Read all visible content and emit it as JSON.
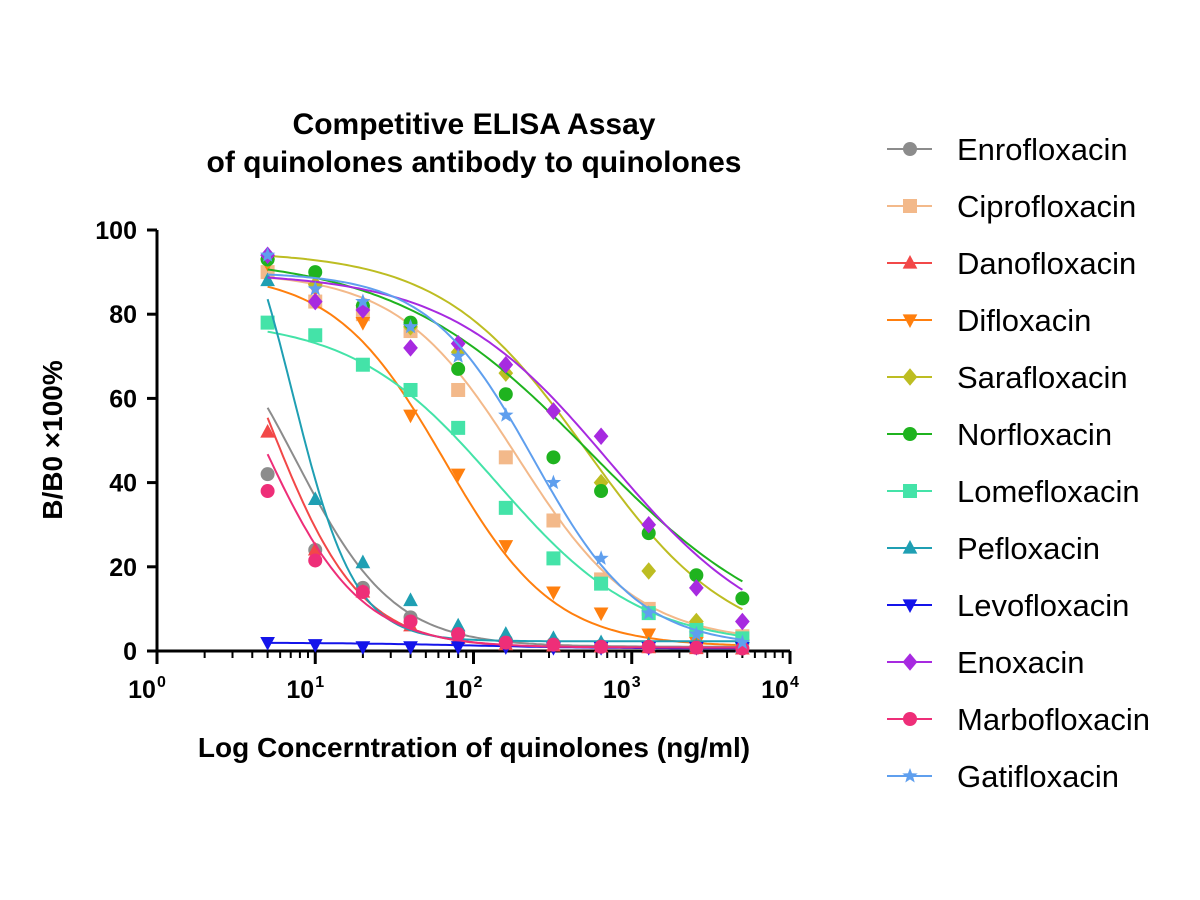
{
  "chart_data": {
    "type": "scatter",
    "title": [
      "Competitive ELISA Assay",
      "of quinolones antibody to quinolones"
    ],
    "xlabel": "Log Concerntration of quinolones (ng/ml)",
    "ylabel": "B/B0 ×100%",
    "xscale": "log",
    "xlim": [
      1,
      10000
    ],
    "ylim": [
      0,
      100
    ],
    "x_ticks": [
      {
        "value": 1,
        "base": "10",
        "exp": "0"
      },
      {
        "value": 10,
        "base": "10",
        "exp": "1"
      },
      {
        "value": 100,
        "base": "10",
        "exp": "2"
      },
      {
        "value": 1000,
        "base": "10",
        "exp": "3"
      },
      {
        "value": 10000,
        "base": "10",
        "exp": "4"
      }
    ],
    "y_ticks": [
      "0",
      "20",
      "40",
      "60",
      "80",
      "100"
    ],
    "grid": false,
    "legend_position": "right",
    "x": [
      5,
      10,
      20,
      40,
      80,
      160,
      320,
      640,
      1280,
      2560,
      5000
    ],
    "series": [
      {
        "name": "Enrofloxacin",
        "color": "#8c8c8c",
        "marker": "circle",
        "values": [
          42,
          24,
          15,
          8,
          4,
          2.5,
          1.8,
          1.2,
          1,
          0.8,
          0.6
        ],
        "fit": {
          "top": 90,
          "bottom": 1,
          "ic50": 7.5,
          "hill": 1.4
        }
      },
      {
        "name": "Ciprofloxacin",
        "color": "#f3b98a",
        "marker": "square",
        "values": [
          90,
          83,
          80,
          76,
          62,
          46,
          31,
          17,
          10,
          5,
          3.5
        ],
        "fit": {
          "top": 90,
          "bottom": 2,
          "ic50": 190,
          "hill": 1.15
        }
      },
      {
        "name": "Danofloxacin",
        "color": "#f24848",
        "marker": "triangle-up",
        "values": [
          52,
          24,
          14,
          6,
          3,
          1.5,
          1.2,
          1,
          0.8,
          0.6,
          0.5
        ],
        "fit": {
          "top": 110,
          "bottom": 0.8,
          "ic50": 5,
          "hill": 1.5
        }
      },
      {
        "name": "Difloxacin",
        "color": "#ff7f0e",
        "marker": "triangle-down",
        "values": [
          92,
          86,
          78,
          56,
          42,
          25,
          14,
          9,
          4,
          2,
          1.5
        ],
        "fit": {
          "top": 90,
          "bottom": 1,
          "ic50": 65,
          "hill": 1.25
        }
      },
      {
        "name": "Sarafloxacin",
        "color": "#bdbd22",
        "marker": "diamond",
        "values": [
          93,
          87,
          82,
          77,
          71,
          66,
          57,
          40,
          19,
          7,
          2
        ],
        "fit": {
          "top": 95,
          "bottom": 0,
          "ic50": 520,
          "hill": 0.95
        }
      },
      {
        "name": "Norfloxacin",
        "color": "#1fb31f",
        "marker": "circle",
        "values": [
          93,
          90,
          82,
          78,
          67,
          61,
          46,
          38,
          28,
          18,
          12.5
        ],
        "fit": {
          "top": 94,
          "bottom": 0,
          "ic50": 550,
          "hill": 0.7
        }
      },
      {
        "name": "Lomefloxacin",
        "color": "#44e3a8",
        "marker": "square",
        "values": [
          78,
          75,
          68,
          62,
          53,
          34,
          22,
          16,
          9,
          5,
          3
        ],
        "fit": {
          "top": 79,
          "bottom": 1,
          "ic50": 140,
          "hill": 0.95
        }
      },
      {
        "name": "Pefloxacin",
        "color": "#1f9fb3",
        "marker": "triangle-up",
        "values": [
          88,
          36,
          21,
          12,
          6,
          4,
          3,
          2,
          1.5,
          1.2,
          1
        ],
        "fit": {
          "top": 120,
          "bottom": 2.3,
          "ic50": 7.2,
          "hill": 2.2
        }
      },
      {
        "name": "Levofloxacin",
        "color": "#1414ea",
        "marker": "triangle-down",
        "values": [
          2,
          1.5,
          1,
          1,
          1,
          1,
          0.8,
          0.8,
          0.8,
          0.8,
          0.8
        ],
        "fit": {
          "top": 2,
          "bottom": 0.6,
          "ic50": 100,
          "hill": 1
        }
      },
      {
        "name": "Enoxacin",
        "color": "#a72ae0",
        "marker": "diamond",
        "values": [
          94,
          83,
          81,
          72,
          73,
          68,
          57,
          51,
          30,
          15,
          7
        ],
        "fit": {
          "top": 90,
          "bottom": 0,
          "ic50": 720,
          "hill": 0.85
        }
      },
      {
        "name": "Marbofloxacin",
        "color": "#ee2e78",
        "marker": "circle",
        "values": [
          38,
          21.5,
          14,
          7,
          4,
          2,
          1.5,
          1,
          1,
          0.8,
          0.6
        ],
        "fit": {
          "top": 100,
          "bottom": 0.8,
          "ic50": 4.5,
          "hill": 1.4
        }
      },
      {
        "name": "Gatifloxacin",
        "color": "#5f9fee",
        "marker": "star",
        "values": [
          94,
          86,
          83,
          77,
          70,
          56,
          40,
          22,
          9,
          4,
          2
        ],
        "fit": {
          "top": 90,
          "bottom": 1,
          "ic50": 240,
          "hill": 1.3
        }
      }
    ]
  }
}
